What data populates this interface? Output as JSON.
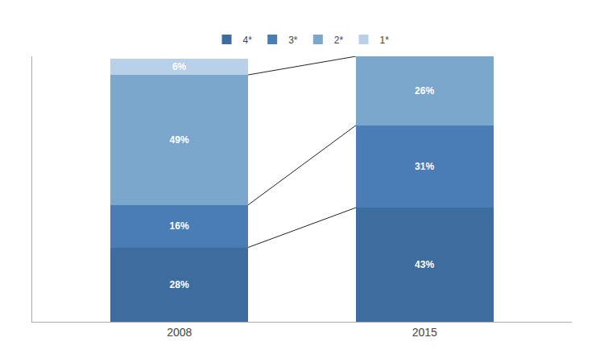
{
  "chart_data": {
    "type": "bar",
    "stacked": true,
    "categories": [
      "2008",
      "2015"
    ],
    "series": [
      {
        "name": "4*",
        "color": "#3d6d9e",
        "values": [
          28,
          43
        ],
        "value_labels": [
          "28%",
          "43%"
        ]
      },
      {
        "name": "3*",
        "color": "#4a7cb5",
        "values": [
          16,
          31
        ],
        "value_labels": [
          "16%",
          "31%"
        ]
      },
      {
        "name": "2*",
        "color": "#7ba7cc",
        "values": [
          49,
          26
        ],
        "value_labels": [
          "49%",
          "26%"
        ]
      },
      {
        "name": "1*",
        "color": "#b8d0e8",
        "values": [
          6,
          0
        ],
        "value_labels": [
          "6%",
          null
        ]
      }
    ],
    "ylim": [
      0,
      100
    ],
    "data_labels": true,
    "tick_labels": "x",
    "grid": false,
    "legend": "top"
  }
}
